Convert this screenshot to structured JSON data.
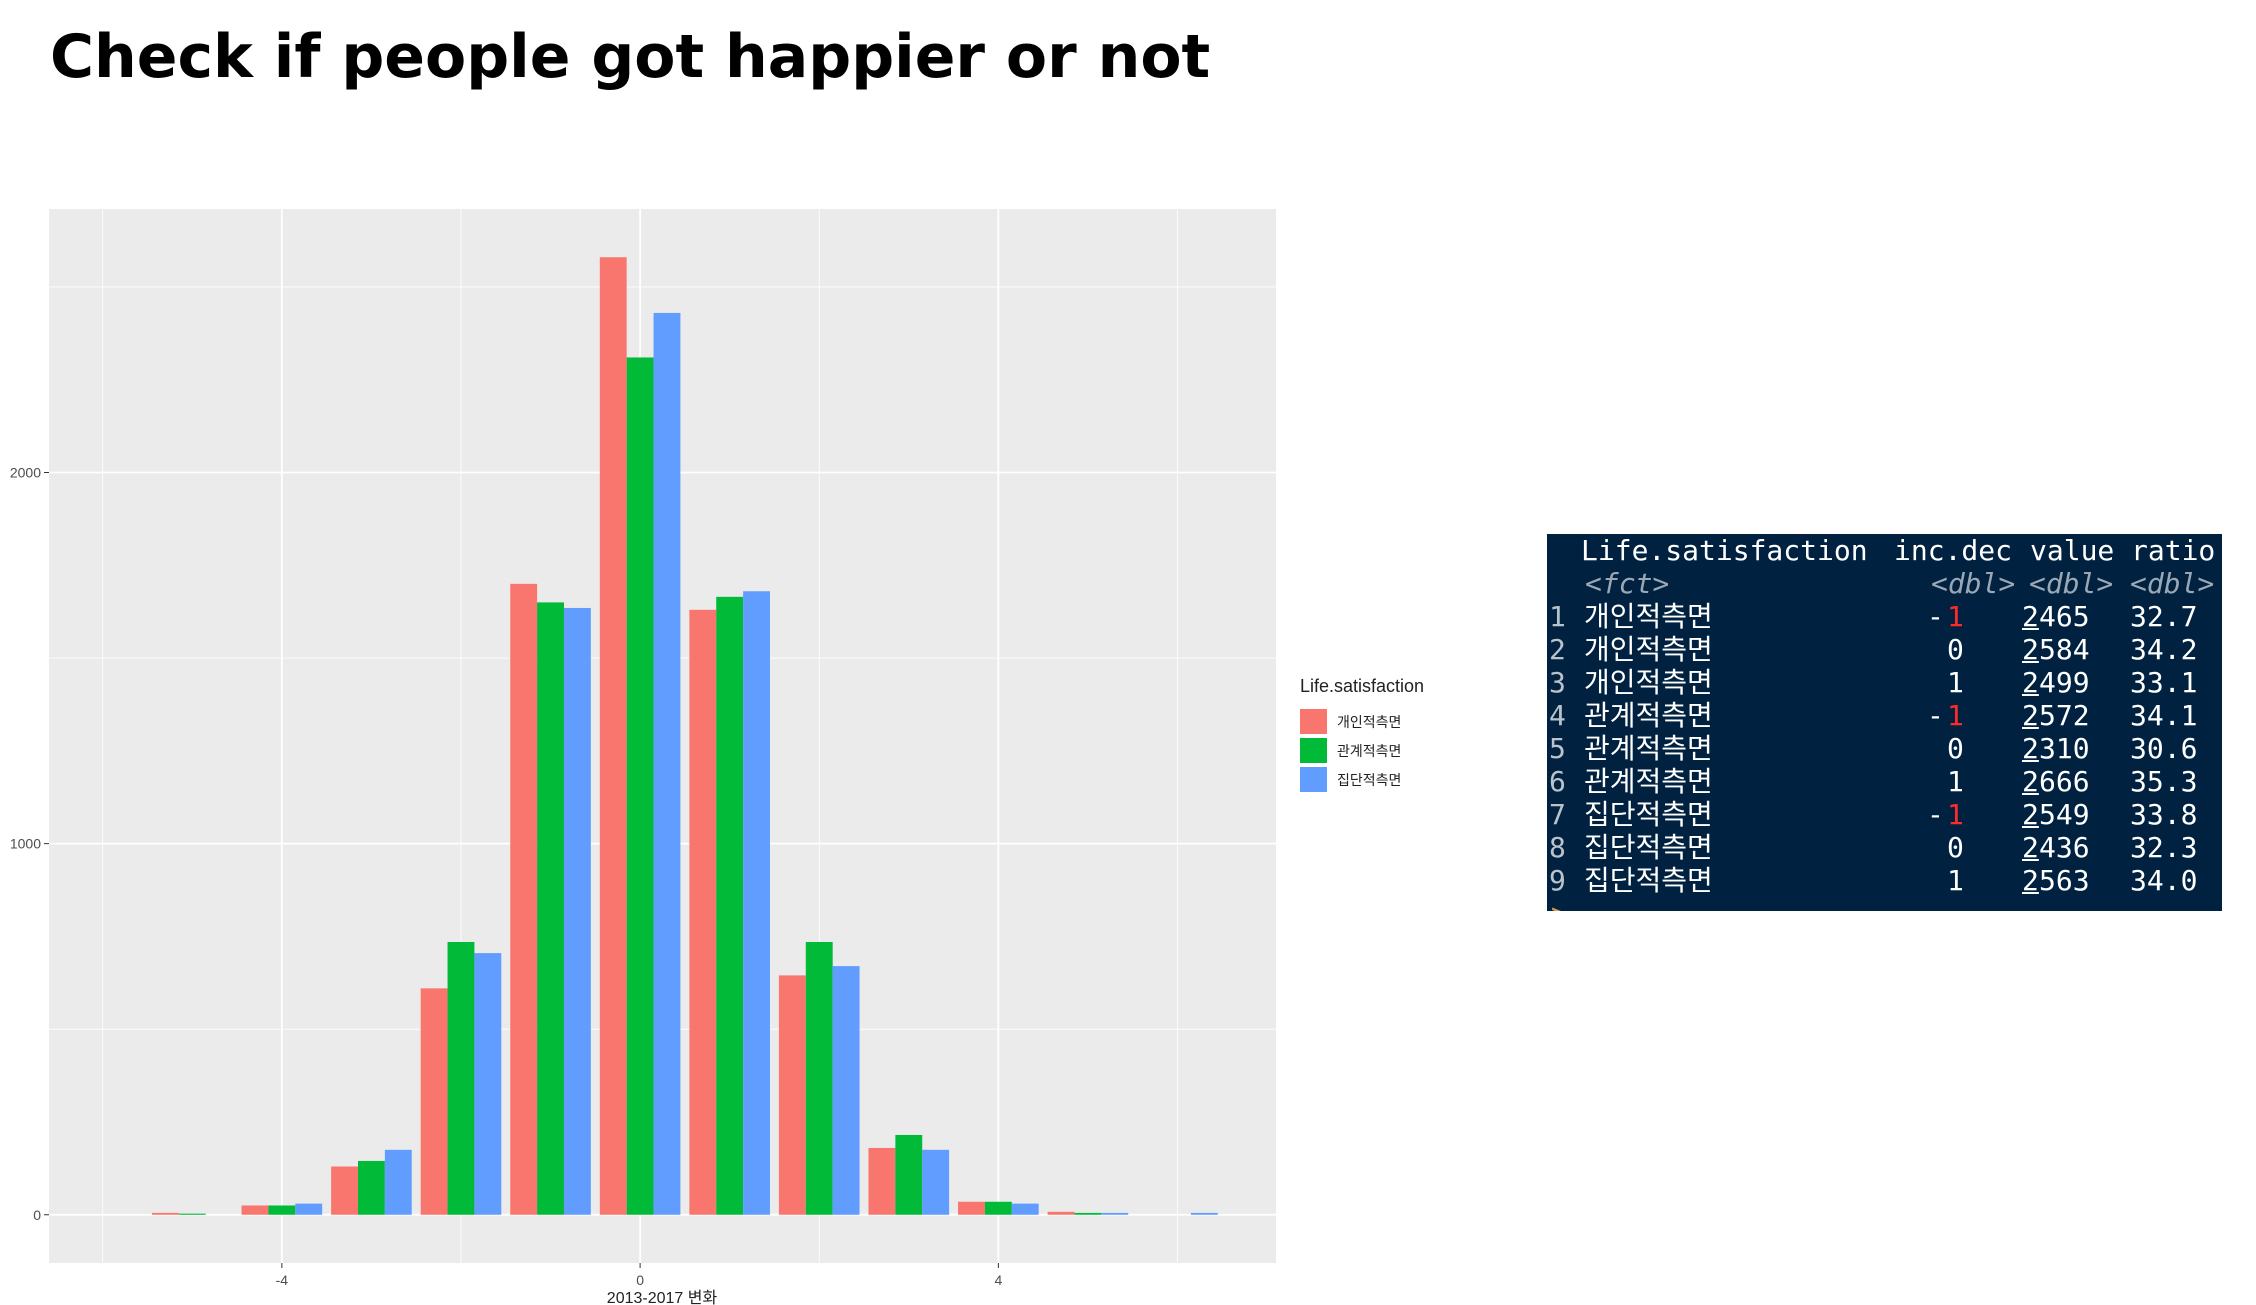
{
  "slide": {
    "title": "Check if people got happier or not"
  },
  "colors": {
    "panel_bg": "#EBEBEB",
    "grid": "#ffffff",
    "console_bg": "#002240"
  },
  "chart_data": {
    "type": "bar",
    "title": "",
    "xlabel": "2013-2017 변화",
    "ylabel": "",
    "x_ticks": [
      -4,
      0,
      4
    ],
    "y_ticks": [
      0,
      1000,
      2000
    ],
    "xlim": [
      -6.6,
      7.1
    ],
    "ylim": [
      -130,
      2710
    ],
    "grid": true,
    "legend": {
      "title": "Life.satisfaction",
      "position": "right"
    },
    "x": [
      -5,
      -4,
      -3,
      -2,
      -1,
      0,
      1,
      2,
      3,
      4,
      5,
      6
    ],
    "series": [
      {
        "name": "개인적측면",
        "color": "#F8766D",
        "values": [
          5,
          25,
          130,
          610,
          1700,
          2580,
          1630,
          645,
          180,
          35,
          8,
          0
        ]
      },
      {
        "name": "관계적측면",
        "color": "#00BA38",
        "values": [
          3,
          25,
          145,
          735,
          1650,
          2310,
          1665,
          735,
          215,
          35,
          5,
          0
        ]
      },
      {
        "name": "집단적측면",
        "color": "#619CFF",
        "values": [
          0,
          30,
          175,
          705,
          1635,
          2430,
          1680,
          670,
          175,
          30,
          5,
          5
        ]
      }
    ]
  },
  "console": {
    "header": {
      "col_name": "Life.satisfaction",
      "col_incdec": "inc.dec",
      "col_value": "value",
      "col_ratio": "ratio"
    },
    "types": {
      "name": "<fct>",
      "incdec": "<dbl>",
      "value": "<dbl>",
      "ratio": "<dbl>"
    },
    "rows": [
      {
        "idx": "1",
        "name": "개인적측면",
        "sign": "-",
        "incdec": "1",
        "value_lead": "2",
        "value_rest": "465",
        "ratio": "32.7"
      },
      {
        "idx": "2",
        "name": "개인적측면",
        "sign": "",
        "incdec": "0",
        "value_lead": "2",
        "value_rest": "584",
        "ratio": "34.2"
      },
      {
        "idx": "3",
        "name": "개인적측면",
        "sign": "",
        "incdec": "1",
        "value_lead": "2",
        "value_rest": "499",
        "ratio": "33.1"
      },
      {
        "idx": "4",
        "name": "관계적측면",
        "sign": "-",
        "incdec": "1",
        "value_lead": "2",
        "value_rest": "572",
        "ratio": "34.1"
      },
      {
        "idx": "5",
        "name": "관계적측면",
        "sign": "",
        "incdec": "0",
        "value_lead": "2",
        "value_rest": "310",
        "ratio": "30.6"
      },
      {
        "idx": "6",
        "name": "관계적측면",
        "sign": "",
        "incdec": "1",
        "value_lead": "2",
        "value_rest": "666",
        "ratio": "35.3"
      },
      {
        "idx": "7",
        "name": "집단적측면",
        "sign": "-",
        "incdec": "1",
        "value_lead": "2",
        "value_rest": "549",
        "ratio": "33.8"
      },
      {
        "idx": "8",
        "name": "집단적측면",
        "sign": "",
        "incdec": "0",
        "value_lead": "2",
        "value_rest": "436",
        "ratio": "32.3"
      },
      {
        "idx": "9",
        "name": "집단적측면",
        "sign": "",
        "incdec": "1",
        "value_lead": "2",
        "value_rest": "563",
        "ratio": "34.0"
      }
    ],
    "prompt": ">"
  }
}
